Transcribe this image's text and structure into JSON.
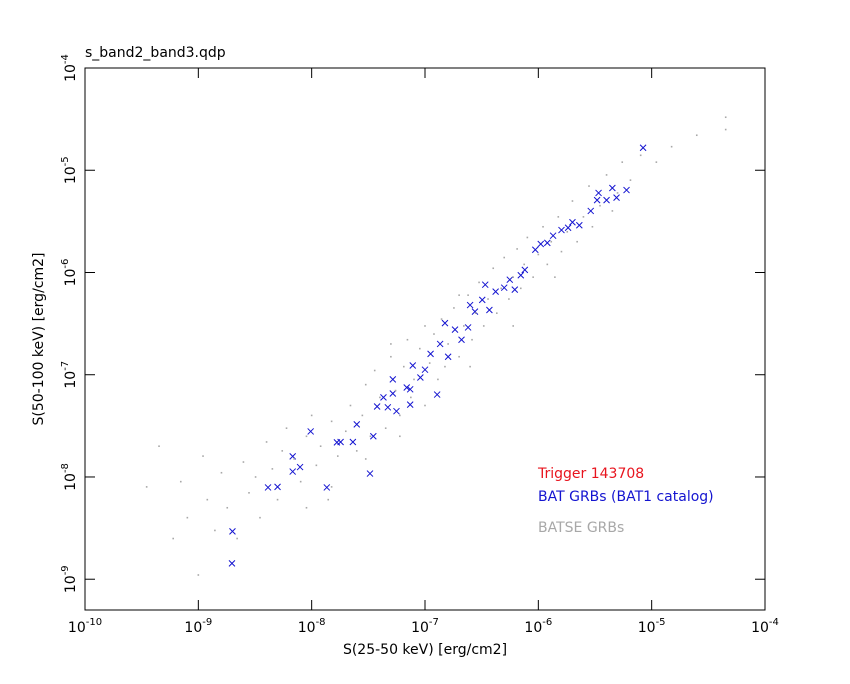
{
  "chart_data": {
    "type": "scatter",
    "title": "s_band2_band3.qdp",
    "x_label": "S(25-50 keV) [erg/cm2]",
    "y_label": "S(50-100 keV) [erg/cm2]",
    "log_x": true,
    "log_y": true,
    "grid": false,
    "xlim": [
      1e-10,
      0.0001
    ],
    "ylim": [
      5e-10,
      0.0001
    ],
    "xticks": [
      {
        "value": 1e-10,
        "label": "10^-10"
      },
      {
        "value": 1e-09,
        "label": "10^-9"
      },
      {
        "value": 1e-08,
        "label": "10^-8"
      },
      {
        "value": 1e-07,
        "label": "10^-7"
      },
      {
        "value": 1e-06,
        "label": "10^-6"
      },
      {
        "value": 1e-05,
        "label": "10^-5"
      },
      {
        "value": 0.0001,
        "label": "10^-4"
      }
    ],
    "yticks": [
      {
        "value": 1e-09,
        "label": "10^-9"
      },
      {
        "value": 1e-08,
        "label": "10^-8"
      },
      {
        "value": 1e-07,
        "label": "10^-7"
      },
      {
        "value": 1e-06,
        "label": "10^-6"
      },
      {
        "value": 1e-05,
        "label": "10^-5"
      },
      {
        "value": 0.0001,
        "label": "10^-4"
      }
    ],
    "series": [
      {
        "name": "Trigger 143708",
        "color": "#e8141e",
        "marker": "x",
        "x": [],
        "values": []
      },
      {
        "name": "BAT GRBs (BAT1 catalog)",
        "color": "#1414d0",
        "marker": "x",
        "x": [
          1.98e-09,
          2e-09,
          4.12e-09,
          5e-09,
          6.8e-09,
          6.8e-09,
          7.9e-09,
          9.8e-09,
          1.36e-08,
          1.67e-08,
          1.8e-08,
          2.31e-08,
          2.5e-08,
          3.27e-08,
          3.5e-08,
          3.78e-08,
          4.7e-08,
          4.3e-08,
          5.2e-08,
          5.6e-08,
          5.2e-08,
          6.9e-08,
          7.4e-08,
          7.8e-08,
          9.1e-08,
          1e-07,
          1.12e-07,
          1.28e-07,
          1.36e-07,
          1.6e-07,
          1.84e-07,
          2.1e-07,
          2.4e-07,
          2.76e-07,
          2.5e-07,
          3.2e-07,
          3.7e-07,
          4.2e-07,
          5e-07,
          5.6e-07,
          6.2e-07,
          7e-07,
          7.6e-07,
          9.4e-07,
          1.05e-06,
          1.2e-06,
          1.35e-06,
          1.83e-06,
          2e-06,
          2.3e-06,
          3.3e-06,
          3.4e-06,
          4.5e-06,
          6e-06,
          8.4e-06,
          7.4e-08,
          1.5e-07,
          3.4e-07,
          1.6e-06,
          2.9e-06,
          4e-06,
          4.9e-06
        ],
        "values": [
          1.43e-09,
          2.94e-09,
          7.9e-09,
          8e-09,
          1.13e-08,
          1.59e-08,
          1.25e-08,
          2.79e-08,
          7.9e-09,
          2.18e-08,
          2.2e-08,
          2.2e-08,
          3.27e-08,
          1.08e-08,
          2.5e-08,
          4.89e-08,
          4.8e-08,
          6e-08,
          6.55e-08,
          4.4e-08,
          9e-08,
          7.5e-08,
          5.1e-08,
          1.23e-07,
          9.4e-08,
          1.12e-07,
          1.6e-07,
          6.4e-08,
          2e-07,
          1.5e-07,
          2.76e-07,
          2.2e-07,
          2.9e-07,
          4.14e-07,
          4.8e-07,
          5.4e-07,
          4.3e-07,
          6.5e-07,
          7.1e-07,
          8.5e-07,
          6.8e-07,
          9.4e-07,
          1.06e-06,
          1.67e-06,
          1.9e-06,
          1.95e-06,
          2.29e-06,
          2.74e-06,
          3.1e-06,
          2.9e-06,
          5.1e-06,
          6e-06,
          6.7e-06,
          6.4e-06,
          1.66e-05,
          7.2e-08,
          3.2e-07,
          7.6e-07,
          2.6e-06,
          4e-06,
          5.1e-06,
          5.4e-06
        ]
      },
      {
        "name": "BATSE GRBs",
        "color": "#a8a8a8",
        "marker": "dot",
        "x": [
          3.5e-10,
          4.5e-10,
          6e-10,
          7e-10,
          8e-10,
          1e-09,
          1.1e-09,
          1.2e-09,
          1.4e-09,
          1.6e-09,
          1.8e-09,
          2.2e-09,
          2.5e-09,
          2.8e-09,
          3.2e-09,
          3.5e-09,
          4e-09,
          4.5e-09,
          5e-09,
          5.5e-09,
          6e-09,
          7e-09,
          8e-09,
          9e-09,
          1e-08,
          1.1e-08,
          1.2e-08,
          1.4e-08,
          1.5e-08,
          1.7e-08,
          2e-08,
          2.2e-08,
          2.5e-08,
          2.8e-08,
          3e-08,
          3.3e-08,
          3.6e-08,
          4e-08,
          4.5e-08,
          5e-08,
          5.5e-08,
          6e-08,
          6.5e-08,
          7e-08,
          7.5e-08,
          8e-08,
          9e-08,
          1e-07,
          1.1e-07,
          1.2e-07,
          1.3e-07,
          1.4e-07,
          1.5e-07,
          1.6e-07,
          1.8e-07,
          2e-07,
          2.2e-07,
          2.4e-07,
          2.6e-07,
          2.8e-07,
          3e-07,
          3.3e-07,
          3.6e-07,
          4e-07,
          4.3e-07,
          4.7e-07,
          5e-07,
          5.5e-07,
          6e-07,
          6.5e-07,
          7e-07,
          7.5e-07,
          8e-07,
          9e-07,
          1e-06,
          1.1e-06,
          1.2e-06,
          1.3e-06,
          1.5e-06,
          1.6e-06,
          1.8e-06,
          2e-06,
          2.2e-06,
          2.5e-06,
          2.8e-06,
          3e-06,
          3.5e-06,
          4e-06,
          4.5e-06,
          5e-06,
          5.5e-06,
          6.5e-06,
          8e-06,
          1.1e-05,
          1.5e-05,
          2.5e-05,
          4.5e-05,
          4.5e-05,
          2e-07,
          1e-07,
          5e-08,
          3e-08,
          1.5e-08,
          6e-08,
          2.5e-07,
          6e-07,
          1.4e-06,
          9e-09
        ],
        "values": [
          8e-09,
          2e-08,
          2.5e-09,
          9e-09,
          4e-09,
          1.1e-09,
          1.6e-08,
          6e-09,
          3e-09,
          1.1e-08,
          5e-09,
          2.5e-09,
          1.4e-08,
          7e-09,
          1e-08,
          4e-09,
          2.2e-08,
          1.2e-08,
          6e-09,
          1.8e-08,
          3e-08,
          1.5e-08,
          9e-09,
          2.5e-08,
          4e-08,
          1.3e-08,
          2e-08,
          6e-09,
          3.5e-08,
          1.6e-08,
          2.8e-08,
          5e-08,
          1.8e-08,
          4e-08,
          8e-08,
          2.5e-08,
          1.1e-07,
          6e-08,
          3e-08,
          1.5e-07,
          7e-08,
          4e-08,
          1.2e-07,
          2.2e-07,
          6e-08,
          9e-08,
          1.8e-07,
          5e-08,
          1.3e-07,
          2.5e-07,
          9e-08,
          3.5e-07,
          1.2e-07,
          2e-07,
          4.5e-07,
          1.5e-07,
          3e-07,
          6e-07,
          2.2e-07,
          4e-07,
          8e-07,
          3e-07,
          5.5e-07,
          1.1e-06,
          4e-07,
          7e-07,
          1.4e-06,
          5.5e-07,
          9e-07,
          1.7e-06,
          7e-07,
          1.2e-06,
          2.2e-06,
          9e-07,
          1.5e-06,
          2.8e-06,
          1.2e-06,
          2e-06,
          3.5e-06,
          1.6e-06,
          2.5e-06,
          5e-06,
          2e-06,
          3.5e-06,
          7e-06,
          2.8e-06,
          4.5e-06,
          9e-06,
          4e-06,
          6e-06,
          1.2e-05,
          8e-06,
          1.4e-05,
          1.2e-05,
          1.7e-05,
          2.2e-05,
          2.5e-05,
          3.3e-05,
          6e-07,
          3e-07,
          2e-07,
          1.5e-08,
          8e-09,
          2.5e-08,
          1.2e-07,
          3e-07,
          9e-07,
          5e-09
        ]
      }
    ]
  }
}
